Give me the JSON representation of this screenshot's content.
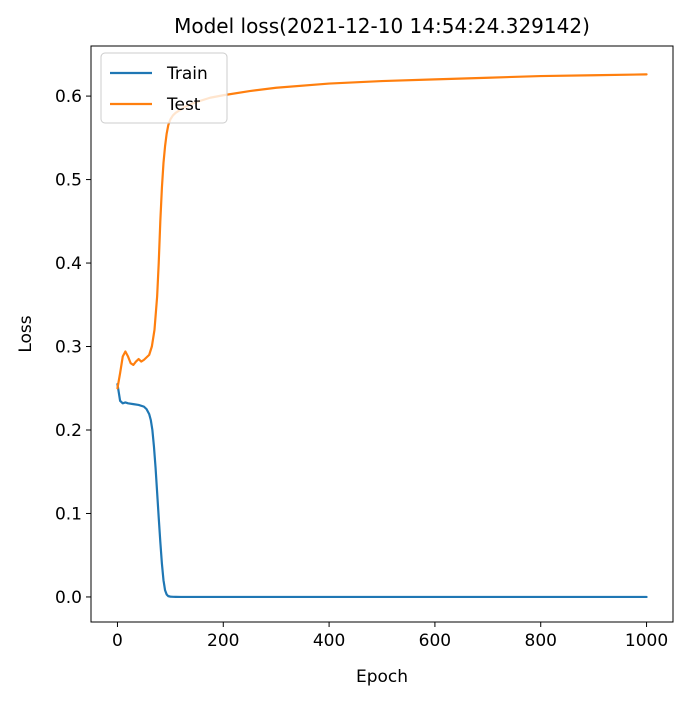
{
  "chart_data": {
    "type": "line",
    "title": "Model loss(2021-12-10 14:54:24.329142)",
    "xlabel": "Epoch",
    "ylabel": "Loss",
    "xlim": [
      -50,
      1050
    ],
    "ylim": [
      -0.03,
      0.66
    ],
    "xticks": [
      0,
      200,
      400,
      600,
      800,
      1000
    ],
    "yticks": [
      0.0,
      0.1,
      0.2,
      0.3,
      0.4,
      0.5,
      0.6
    ],
    "xtick_labels": [
      "0",
      "200",
      "400",
      "600",
      "800",
      "1000"
    ],
    "ytick_labels": [
      "0.0",
      "0.1",
      "0.2",
      "0.3",
      "0.4",
      "0.5",
      "0.6"
    ],
    "grid": false,
    "legend_position": "top-left",
    "series": [
      {
        "name": "Train",
        "color": "#1f77b4",
        "x": [
          0,
          5,
          10,
          15,
          20,
          30,
          40,
          50,
          55,
          60,
          63,
          66,
          69,
          72,
          75,
          78,
          81,
          84,
          87,
          90,
          93,
          96,
          100,
          105,
          110,
          120,
          150,
          200,
          300,
          400,
          600,
          800,
          1000
        ],
        "y": [
          0.255,
          0.235,
          0.232,
          0.233,
          0.232,
          0.231,
          0.23,
          0.228,
          0.225,
          0.219,
          0.212,
          0.2,
          0.18,
          0.155,
          0.125,
          0.095,
          0.066,
          0.04,
          0.02,
          0.008,
          0.003,
          0.001,
          0.0004,
          0.0002,
          0.0001,
          0.0,
          0.0,
          0.0,
          0.0,
          0.0,
          0.0,
          0.0,
          0.0
        ]
      },
      {
        "name": "Test",
        "color": "#ff7f0e",
        "x": [
          0,
          5,
          10,
          15,
          20,
          25,
          30,
          35,
          40,
          45,
          50,
          55,
          60,
          65,
          70,
          75,
          78,
          81,
          84,
          87,
          90,
          93,
          96,
          100,
          105,
          110,
          120,
          130,
          150,
          175,
          200,
          250,
          300,
          400,
          500,
          600,
          700,
          800,
          900,
          1000
        ],
        "y": [
          0.25,
          0.268,
          0.288,
          0.294,
          0.288,
          0.28,
          0.278,
          0.282,
          0.285,
          0.282,
          0.284,
          0.287,
          0.29,
          0.3,
          0.32,
          0.36,
          0.4,
          0.45,
          0.49,
          0.52,
          0.54,
          0.555,
          0.565,
          0.572,
          0.577,
          0.58,
          0.584,
          0.588,
          0.593,
          0.598,
          0.601,
          0.606,
          0.61,
          0.615,
          0.618,
          0.62,
          0.622,
          0.624,
          0.625,
          0.626
        ]
      }
    ]
  }
}
